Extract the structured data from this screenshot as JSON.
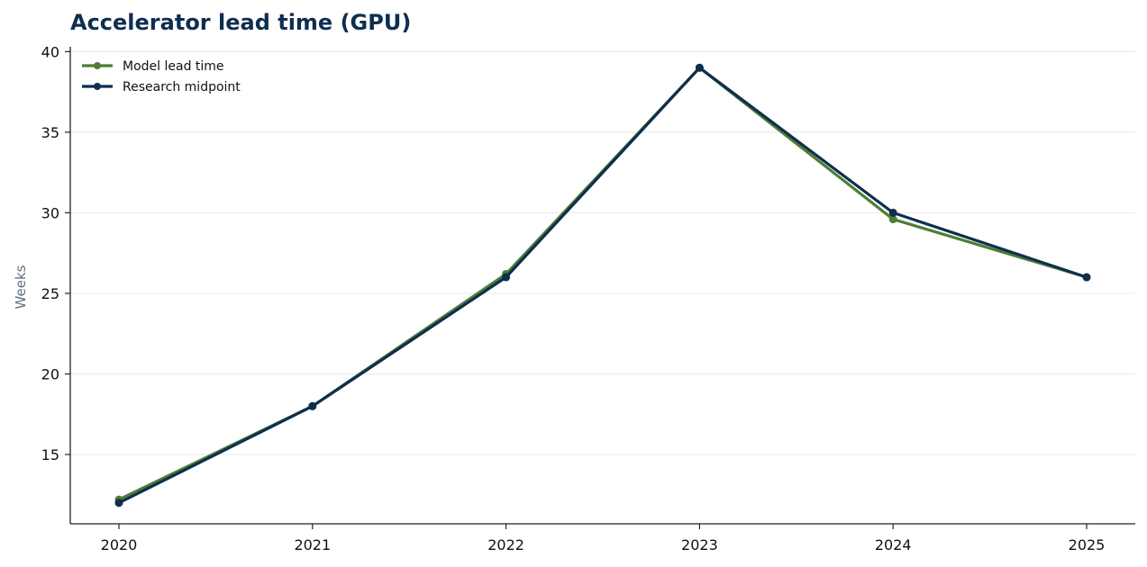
{
  "chart_data": {
    "type": "line",
    "title": "Accelerator lead time (GPU)",
    "xlabel": "",
    "ylabel": "Weeks",
    "categories": [
      "2020",
      "2021",
      "2022",
      "2023",
      "2024",
      "2025"
    ],
    "yticks": [
      15,
      20,
      25,
      30,
      35,
      40
    ],
    "ylim": [
      10.7,
      40.3
    ],
    "grid": "horizontal",
    "legend_position": "top-left",
    "series": [
      {
        "name": "Model lead time",
        "color": "#4e7d33",
        "values": [
          12.2,
          18.0,
          26.2,
          39.0,
          29.6,
          26.0
        ]
      },
      {
        "name": "Research midpoint",
        "color": "#0e2e4f",
        "values": [
          12.0,
          18.0,
          26.0,
          39.0,
          30.0,
          26.0
        ]
      }
    ],
    "colors": {
      "title": "#0e2e4f",
      "ylabel": "#5f6f80",
      "grid": "#e8e8ec",
      "axis": "#222222"
    }
  }
}
